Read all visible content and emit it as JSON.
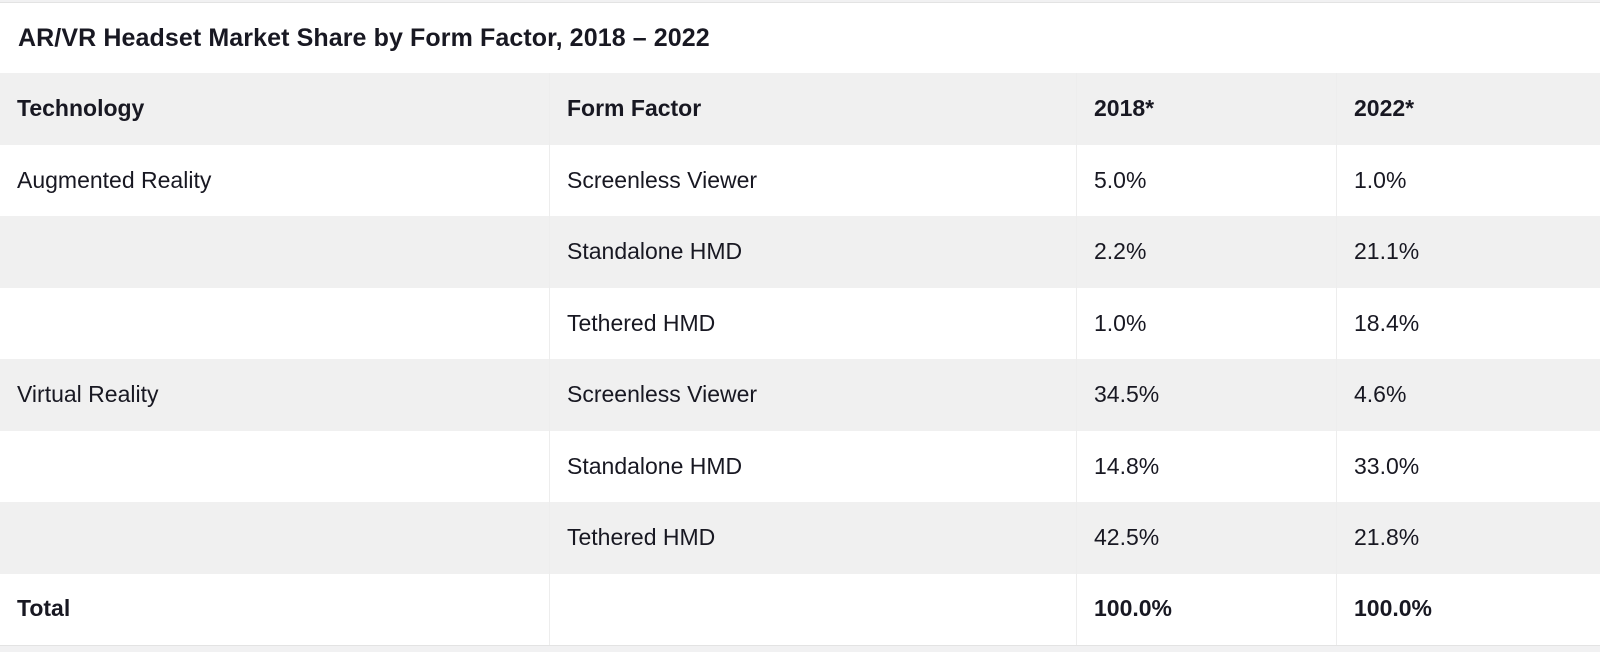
{
  "title": "AR/VR Headset Market Share by Form Factor, 2018 – 2022",
  "chart_data": {
    "type": "table",
    "title": "AR/VR Headset Market Share by Form Factor, 2018 – 2022",
    "columns": [
      "Technology",
      "Form Factor",
      "2018*",
      "2022*"
    ],
    "value_unit": "percent",
    "value_format": "one_decimal_percent",
    "rows": [
      {
        "technology": "Augmented Reality",
        "form_factor": "Screenless Viewer",
        "y2018": 5.0,
        "y2022": 1.0
      },
      {
        "technology": "",
        "form_factor": "Standalone HMD",
        "y2018": 2.2,
        "y2022": 21.1
      },
      {
        "technology": "",
        "form_factor": "Tethered HMD",
        "y2018": 1.0,
        "y2022": 18.4
      },
      {
        "technology": "Virtual Reality",
        "form_factor": "Screenless Viewer",
        "y2018": 34.5,
        "y2022": 4.6
      },
      {
        "technology": "",
        "form_factor": "Standalone HMD",
        "y2018": 14.8,
        "y2022": 33.0
      },
      {
        "technology": "",
        "form_factor": "Tethered HMD",
        "y2018": 42.5,
        "y2022": 21.8
      }
    ],
    "total_row": {
      "label": "Total",
      "form_factor": "",
      "y2018": 100.0,
      "y2022": 100.0
    },
    "layout_hints": {
      "zebra_striping": true,
      "total_row_bold": true,
      "header_bold": true
    }
  },
  "colors": {
    "page_bg": "#f1f1f2",
    "card_bg": "#ffffff",
    "stripe": "#f0f0f0",
    "divider": "#ededed",
    "frame_border": "#e3e3e3",
    "text": "#181822"
  }
}
